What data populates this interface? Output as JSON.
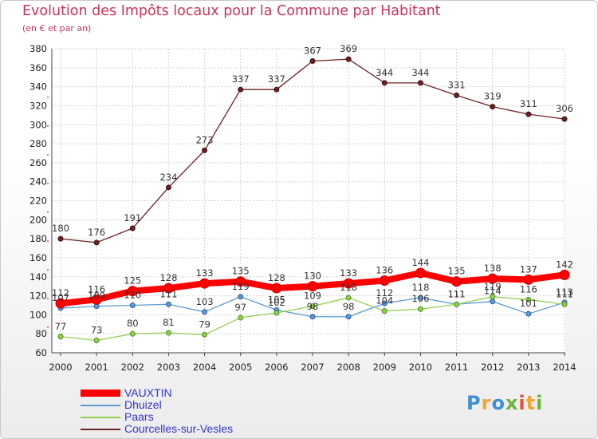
{
  "header": {
    "title": "Evolution des Impôts locaux pour la Commune par Habitant",
    "subtitle": "(en € et par an)"
  },
  "chart_data": {
    "type": "line",
    "title": "Evolution des Impôts locaux pour la Commune par Habitant",
    "subtitle": "(en € et par an)",
    "xlabel": "",
    "ylabel": "",
    "x": [
      "2000",
      "2001",
      "2002",
      "2003",
      "2004",
      "2005",
      "2006",
      "2007",
      "2008",
      "2009",
      "2010",
      "2011",
      "2012",
      "2013",
      "2014"
    ],
    "ylim": [
      60,
      380
    ],
    "yticks": [
      60,
      80,
      100,
      120,
      140,
      160,
      180,
      200,
      220,
      240,
      260,
      280,
      300,
      320,
      340,
      360,
      380
    ],
    "grid": true,
    "legend": "bottom-left",
    "series": [
      {
        "name": "Courcelles-sur-Vesles",
        "color": "#6b2225",
        "values": [
          180,
          176,
          191,
          234,
          273,
          337,
          337,
          367,
          369,
          344,
          344,
          331,
          319,
          311,
          306
        ],
        "labels": true
      },
      {
        "name": "Dhuizel",
        "color": "#5b9bd5",
        "values": [
          107,
          109,
          110,
          111,
          103,
          119,
          105,
          98,
          98,
          112,
          118,
          111,
          114,
          101,
          113
        ],
        "labels": true
      },
      {
        "name": "Paars",
        "color": "#92d050",
        "values": [
          77,
          73,
          80,
          81,
          79,
          97,
          102,
          109,
          118,
          104,
          106,
          111,
          119,
          116,
          111
        ],
        "labels": true
      },
      {
        "name": "VAUXTIN",
        "color": "#ff0000",
        "values": [
          112,
          116,
          125,
          128,
          133,
          135,
          128,
          130,
          133,
          136,
          144,
          135,
          138,
          137,
          142
        ],
        "labels": true
      }
    ]
  },
  "legend": {
    "items": [
      {
        "label": "VAUXTIN",
        "color": "#ff0000"
      },
      {
        "label": "Dhuizel",
        "color": "#5b9bd5"
      },
      {
        "label": "Paars",
        "color": "#92d050"
      },
      {
        "label": "Courcelles-sur-Vesles",
        "color": "#6b2225"
      }
    ]
  },
  "logo": {
    "text": "Proxiti",
    "letters": [
      {
        "ch": "P",
        "color": "#3d8fd6"
      },
      {
        "ch": "r",
        "color": "#f2a532"
      },
      {
        "ch": "o",
        "color": "#3d8fd6"
      },
      {
        "ch": "x",
        "color": "#6cb33f"
      },
      {
        "ch": "i",
        "color": "#e84d3d"
      },
      {
        "ch": "t",
        "color": "#f2a532"
      },
      {
        "ch": "i",
        "color": "#6cb33f"
      }
    ]
  }
}
